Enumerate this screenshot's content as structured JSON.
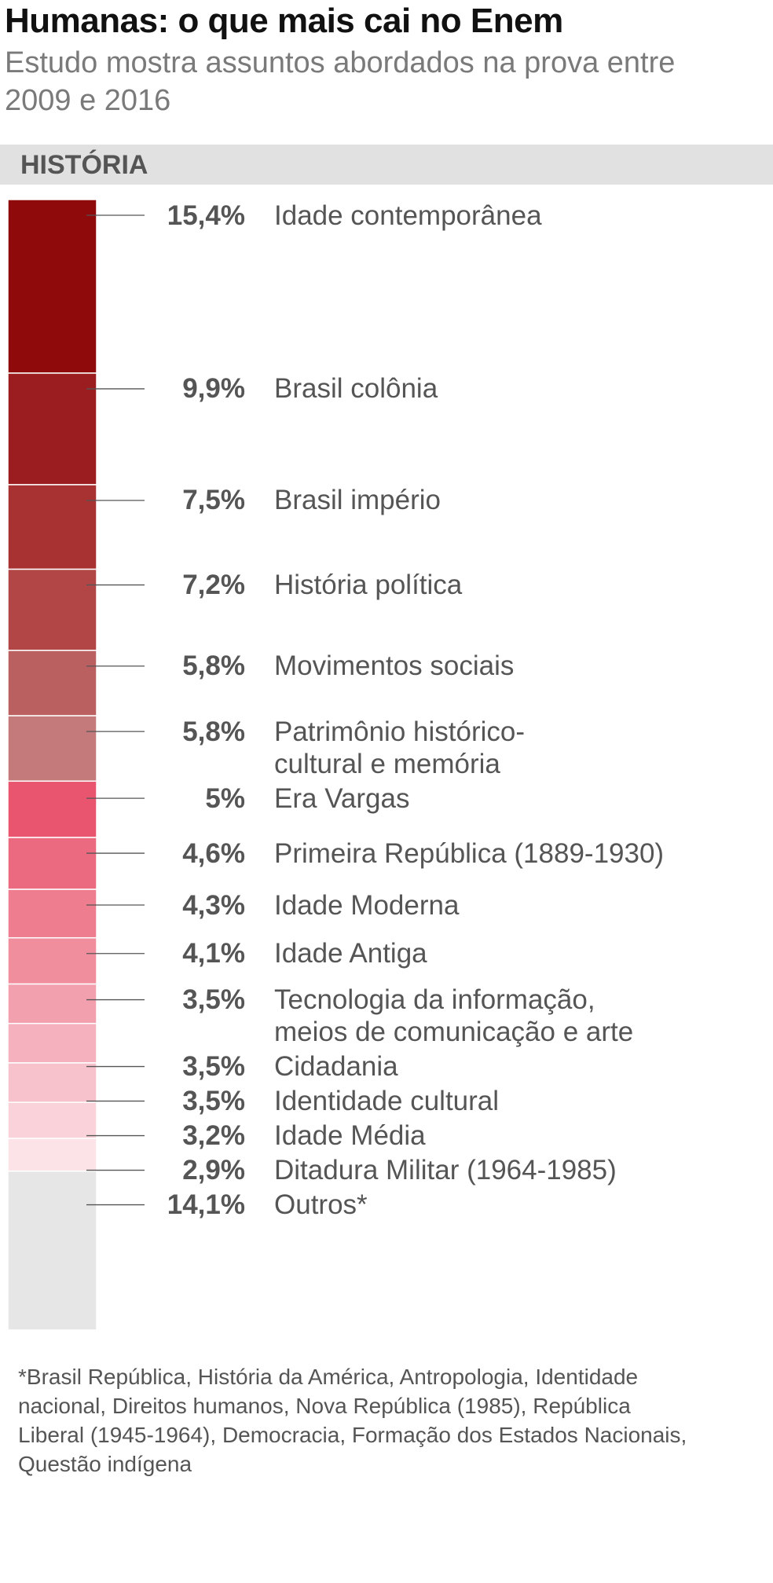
{
  "chart_data": {
    "type": "stacked-column",
    "title": "Humanas: o que mais cai no Enem",
    "subtitle": "Estudo mostra assuntos abordados na prova entre 2009 e 2016",
    "section": "HISTÓRIA",
    "categories": [
      "Idade contemporânea",
      "Brasil colônia",
      "Brasil império",
      "História política",
      "Movimentos sociais",
      "Patrimônio histórico-\ncultural e memória",
      "Era Vargas",
      "Primeira República (1889-1930)",
      "Idade Moderna",
      "Idade Antiga",
      "Tecnologia da informação,\nmeios de comunicação e arte",
      "Cidadania",
      "Identidade cultural",
      "Idade Média",
      "Ditadura Militar (1964-1985)",
      "Outros*"
    ],
    "values": [
      15.4,
      9.9,
      7.5,
      7.2,
      5.8,
      5.8,
      5,
      4.6,
      4.3,
      4.1,
      3.5,
      3.5,
      3.5,
      3.2,
      2.9,
      14.1
    ],
    "value_labels": [
      "15,4%",
      "9,9%",
      "7,5%",
      "7,2%",
      "5,8%",
      "5,8%",
      "5%",
      "4,6%",
      "4,3%",
      "4,1%",
      "3,5%",
      "3,5%",
      "3,5%",
      "3,2%",
      "2,9%",
      "14,1%"
    ],
    "colors": [
      "#8e0a0b",
      "#9c1d1f",
      "#a83131",
      "#b24647",
      "#bb6061",
      "#c47a7a",
      "#e9556f",
      "#ec6a80",
      "#ef7d90",
      "#f18e9d",
      "#f3a0ae",
      "#f5b1bd",
      "#f7c2cb",
      "#f9d3d9",
      "#fbe3e7",
      "#e6e6e6"
    ],
    "note": "*Brasil República, História da América, Antropologia, Identidade nacional, Direitos humanos, Nova República (1985), República Liberal (1945-1964), Democracia, Formação dos Estados Nacionais, Questão indígena"
  }
}
